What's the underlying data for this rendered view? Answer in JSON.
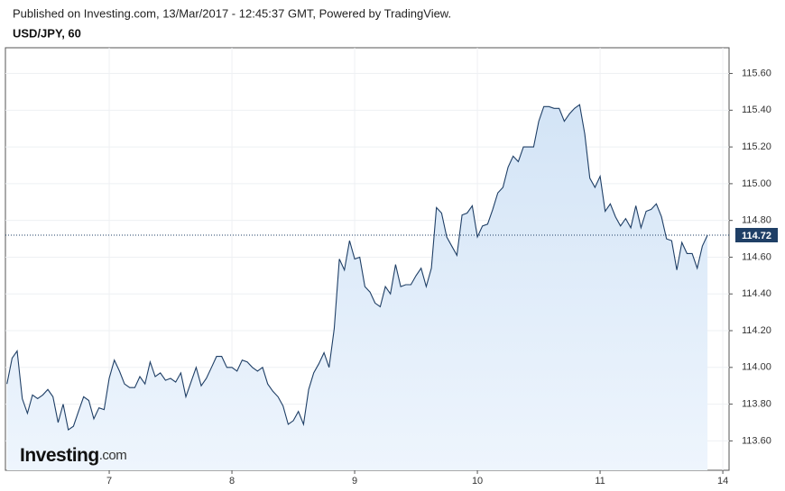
{
  "chart_data": {
    "type": "line",
    "header": "Published on Investing.com, 13/Mar/2017 - 12:45:37 GMT, Powered by TradingView.",
    "title": "USD/JPY, 60",
    "logo_main": "Investing",
    "logo_suffix": ".com",
    "categories": [
      null,
      null,
      null,
      null,
      null,
      null,
      null,
      null,
      null,
      null,
      null,
      null,
      null,
      null,
      null,
      null,
      null,
      null,
      null,
      null,
      "7",
      null,
      null,
      null,
      null,
      null,
      null,
      null,
      null,
      null,
      null,
      null,
      null,
      null,
      null,
      null,
      null,
      null,
      null,
      null,
      null,
      null,
      null,
      null,
      "8",
      null,
      null,
      null,
      null,
      null,
      null,
      null,
      null,
      null,
      null,
      null,
      null,
      null,
      null,
      null,
      null,
      null,
      null,
      null,
      null,
      null,
      null,
      null,
      "9",
      null,
      null,
      null,
      null,
      null,
      null,
      null,
      null,
      null,
      null,
      null,
      null,
      null,
      null,
      null,
      null,
      null,
      null,
      null,
      null,
      null,
      null,
      null,
      "10",
      null,
      null,
      null,
      null,
      null,
      null,
      null,
      null,
      null,
      null,
      null,
      null,
      null,
      null,
      null,
      null,
      null,
      null,
      null,
      null,
      null,
      null,
      null,
      "11",
      null,
      null,
      null,
      null,
      null,
      null,
      null,
      null,
      null,
      null,
      null,
      null,
      null,
      null,
      null,
      null,
      null,
      null,
      null,
      null,
      null,
      null,
      null,
      "14",
      null
    ],
    "series": [
      {
        "name": "USD/JPY",
        "color": "#1f3f66",
        "fill": "#d6e6f7",
        "values": [
          113.91,
          114.05,
          114.09,
          113.83,
          113.75,
          113.85,
          113.83,
          113.85,
          113.88,
          113.84,
          113.7,
          113.8,
          113.66,
          113.68,
          113.76,
          113.84,
          113.82,
          113.72,
          113.78,
          113.77,
          113.94,
          114.04,
          113.98,
          113.91,
          113.89,
          113.89,
          113.95,
          113.91,
          114.03,
          113.95,
          113.97,
          113.93,
          113.94,
          113.92,
          113.97,
          113.84,
          113.92,
          114.0,
          113.9,
          113.94,
          114.0,
          114.06,
          114.06,
          114.0,
          114.0,
          113.98,
          114.04,
          114.03,
          114.0,
          113.98,
          114.0,
          113.91,
          113.87,
          113.84,
          113.79,
          113.69,
          113.71,
          113.76,
          113.69,
          113.88,
          113.97,
          114.02,
          114.08,
          114.0,
          114.21,
          114.59,
          114.53,
          114.69,
          114.59,
          114.6,
          114.44,
          114.41,
          114.35,
          114.33,
          114.44,
          114.4,
          114.56,
          114.44,
          114.45,
          114.45,
          114.5,
          114.54,
          114.44,
          114.54,
          114.87,
          114.84,
          114.71,
          114.66,
          114.61,
          114.83,
          114.84,
          114.88,
          114.71,
          114.77,
          114.78,
          114.86,
          114.95,
          114.98,
          115.09,
          115.15,
          115.12,
          115.2,
          115.2,
          115.2,
          115.34,
          115.42,
          115.42,
          115.41,
          115.41,
          115.34,
          115.38,
          115.41,
          115.43,
          115.27,
          115.03,
          114.98,
          115.04,
          114.85,
          114.89,
          114.82,
          114.77,
          114.81,
          114.76,
          114.88,
          114.76,
          114.85,
          114.86,
          114.89,
          114.82,
          114.7,
          114.69,
          114.53,
          114.68,
          114.62,
          114.62,
          114.54,
          114.66,
          114.72,
          null,
          null,
          null,
          null
        ]
      }
    ],
    "last_price": 114.72,
    "ylim": [
      113.44,
      115.74
    ],
    "yticks": [
      {
        "value": 113.6,
        "label": "113.60"
      },
      {
        "value": 113.8,
        "label": "113.80"
      },
      {
        "value": 114.0,
        "label": "114.00"
      },
      {
        "value": 114.2,
        "label": "114.20"
      },
      {
        "value": 114.4,
        "label": "114.40"
      },
      {
        "value": 114.6,
        "label": "114.60"
      },
      {
        "value": 114.8,
        "label": "114.80"
      },
      {
        "value": 115.0,
        "label": "115.00"
      },
      {
        "value": 115.2,
        "label": "115.20"
      },
      {
        "value": 115.4,
        "label": "115.40"
      },
      {
        "value": 115.6,
        "label": "115.60"
      }
    ],
    "grid": true
  }
}
